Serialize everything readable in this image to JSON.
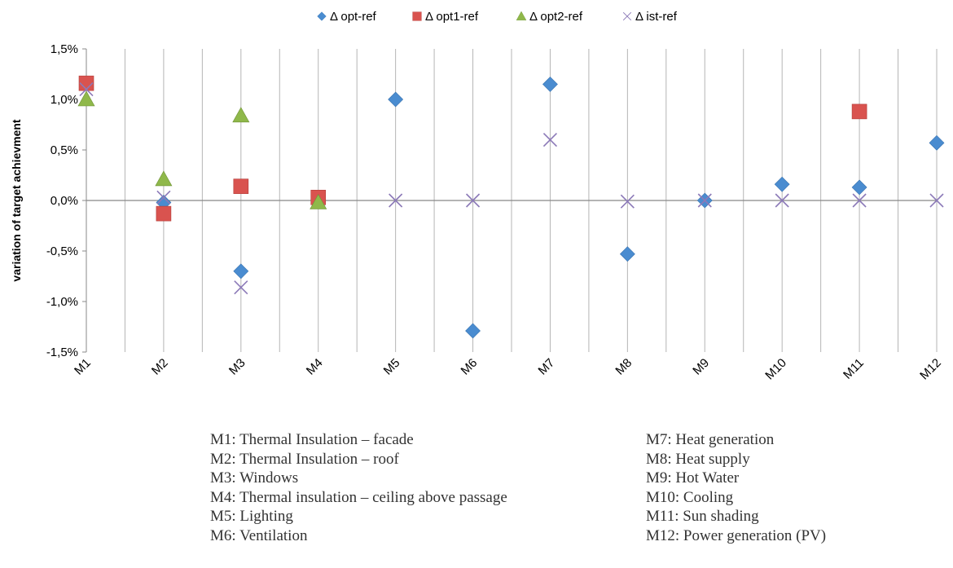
{
  "chart_data": {
    "type": "scatter",
    "categories": [
      "M1",
      "M2",
      "M3",
      "M4",
      "M5",
      "M6",
      "M7",
      "M8",
      "M9",
      "M10",
      "M11",
      "M12"
    ],
    "ylabel": "variation of target achievment",
    "ylim": [
      -0.015,
      0.015
    ],
    "yticks": [
      {
        "value": 0.015,
        "label": "1,5%"
      },
      {
        "value": 0.01,
        "label": "1,0%"
      },
      {
        "value": 0.005,
        "label": "0,5%"
      },
      {
        "value": 0.0,
        "label": "0,0%"
      },
      {
        "value": -0.005,
        "label": "-0,5%"
      },
      {
        "value": -0.01,
        "label": "-1,0%"
      },
      {
        "value": -0.015,
        "label": "-1,5%"
      }
    ],
    "grid": "vertical",
    "legend_position": "top",
    "series": [
      {
        "name": "Δ opt-ref",
        "marker": "diamond",
        "color": "#4a8cd0",
        "values": [
          null,
          -0.0002,
          -0.007,
          null,
          0.01,
          -0.0129,
          0.0115,
          -0.0053,
          0.0,
          0.0016,
          0.0013,
          0.0057
        ]
      },
      {
        "name": "Δ opt1-ref",
        "marker": "square",
        "color": "#d9534f",
        "values": [
          0.0116,
          -0.0013,
          0.0014,
          0.0003,
          null,
          null,
          null,
          null,
          null,
          null,
          0.0088,
          null
        ]
      },
      {
        "name": "Δ opt2-ref",
        "marker": "triangle",
        "color": "#8fb84a",
        "values": [
          0.01,
          0.0021,
          0.0084,
          -0.0002,
          null,
          null,
          null,
          null,
          null,
          null,
          null,
          null
        ]
      },
      {
        "name": "Δ ist-ref",
        "marker": "x",
        "color": "#8c7ab8",
        "values": [
          0.011,
          0.0003,
          -0.0086,
          null,
          0.0,
          0.0,
          0.006,
          -0.0001,
          0.0,
          0.0,
          0.0,
          0.0
        ]
      }
    ]
  },
  "descriptions": {
    "left": [
      "M1: Thermal Insulation – facade",
      "M2: Thermal Insulation – roof",
      "M3: Windows",
      "M4: Thermal insulation – ceiling above passage",
      "M5: Lighting",
      "M6: Ventilation"
    ],
    "right": [
      "M7: Heat generation",
      "M8: Heat supply",
      "M9: Hot Water",
      "M10: Cooling",
      "M11: Sun shading",
      "M12: Power generation (PV)"
    ]
  }
}
